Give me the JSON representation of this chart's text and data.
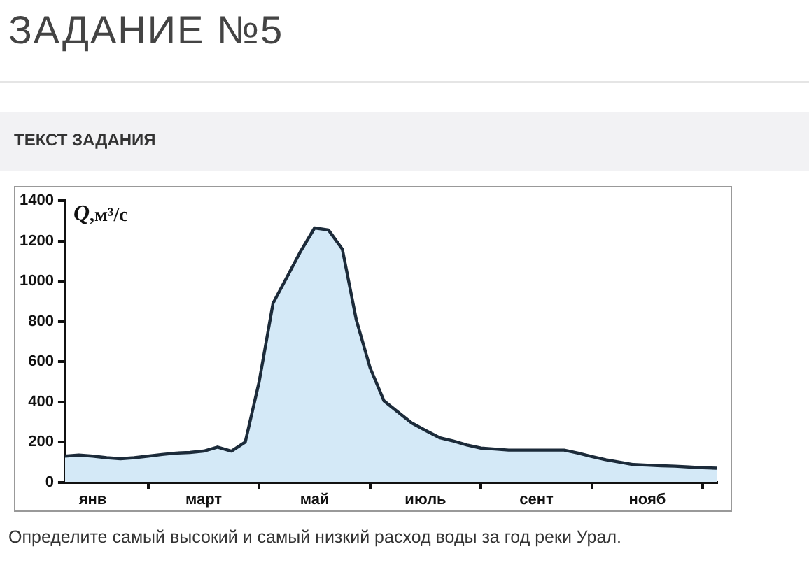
{
  "chart_data": {
    "type": "area",
    "title": "ЗАДАНИЕ №5",
    "subtitle": "ТЕКСТ ЗАДАНИЯ",
    "ylabel": "Q,м³/с",
    "annotations": [
      "Определите самый высокий и самый низкий расход воды за год реки Урал."
    ],
    "categories": [
      null,
      null,
      "янв",
      null,
      null,
      null,
      null,
      null,
      null,
      null,
      "март",
      null,
      null,
      null,
      null,
      null,
      null,
      null,
      "май",
      null,
      null,
      null,
      null,
      null,
      null,
      null,
      "июль",
      null,
      null,
      null,
      null,
      null,
      null,
      null,
      "сент",
      null,
      null,
      null,
      null,
      null,
      null,
      null,
      "нояб",
      null,
      null,
      null,
      null,
      null
    ],
    "series": [
      {
        "color": "#d4e9f7",
        "values": [
          130,
          135,
          130,
          122,
          117,
          122,
          130,
          138,
          145,
          148,
          155,
          175,
          155,
          200,
          500,
          890,
          1020,
          1150,
          1265,
          1255,
          1160,
          810,
          570,
          405,
          350,
          295,
          258,
          222,
          205,
          185,
          170,
          165,
          160,
          160,
          160,
          160,
          160,
          145,
          128,
          112,
          100,
          88,
          85,
          82,
          80,
          76,
          72,
          70
        ]
      }
    ],
    "ylim": [
      0,
      1400
    ],
    "yticks": [
      0,
      200,
      400,
      600,
      800,
      1000,
      1200,
      1400
    ],
    "grid": false,
    "legend": false,
    "marker": "none",
    "line_style": "solid"
  }
}
